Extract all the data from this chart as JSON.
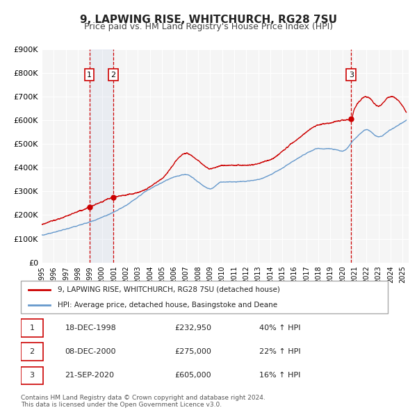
{
  "title_line1": "9, LAPWING RISE, WHITCHURCH, RG28 7SU",
  "title_line2": "Price paid vs. HM Land Registry's House Price Index (HPI)",
  "xlabel": "",
  "ylabel": "",
  "ylim": [
    0,
    900000
  ],
  "ytick_labels": [
    "£0",
    "£100K",
    "£200K",
    "£300K",
    "£400K",
    "£500K",
    "£600K",
    "£700K",
    "£800K",
    "£900K"
  ],
  "ytick_values": [
    0,
    100000,
    200000,
    300000,
    400000,
    500000,
    600000,
    700000,
    800000,
    900000
  ],
  "xlim_start": 1995.0,
  "xlim_end": 2025.5,
  "sale_color": "#cc0000",
  "hpi_color": "#6699cc",
  "background_color": "#ffffff",
  "plot_bg_color": "#f5f5f5",
  "grid_color": "#ffffff",
  "sales": [
    {
      "date_num": 1998.96,
      "price": 232950,
      "label": "1"
    },
    {
      "date_num": 2000.93,
      "price": 275000,
      "label": "2"
    },
    {
      "date_num": 2020.72,
      "price": 605000,
      "label": "3"
    }
  ],
  "vline1_x": 1998.96,
  "vline2_x": 2000.93,
  "vline3_x": 2020.72,
  "legend_sale_label": "9, LAPWING RISE, WHITCHURCH, RG28 7SU (detached house)",
  "legend_hpi_label": "HPI: Average price, detached house, Basingstoke and Deane",
  "table_rows": [
    {
      "num": "1",
      "date": "18-DEC-1998",
      "price": "£232,950",
      "change": "40% ↑ HPI"
    },
    {
      "num": "2",
      "date": "08-DEC-2000",
      "price": "£275,000",
      "change": "22% ↑ HPI"
    },
    {
      "num": "3",
      "date": "21-SEP-2020",
      "price": "£605,000",
      "change": "16% ↑ HPI"
    }
  ],
  "footer_line1": "Contains HM Land Registry data © Crown copyright and database right 2024.",
  "footer_line2": "This data is licensed under the Open Government Licence v3.0."
}
